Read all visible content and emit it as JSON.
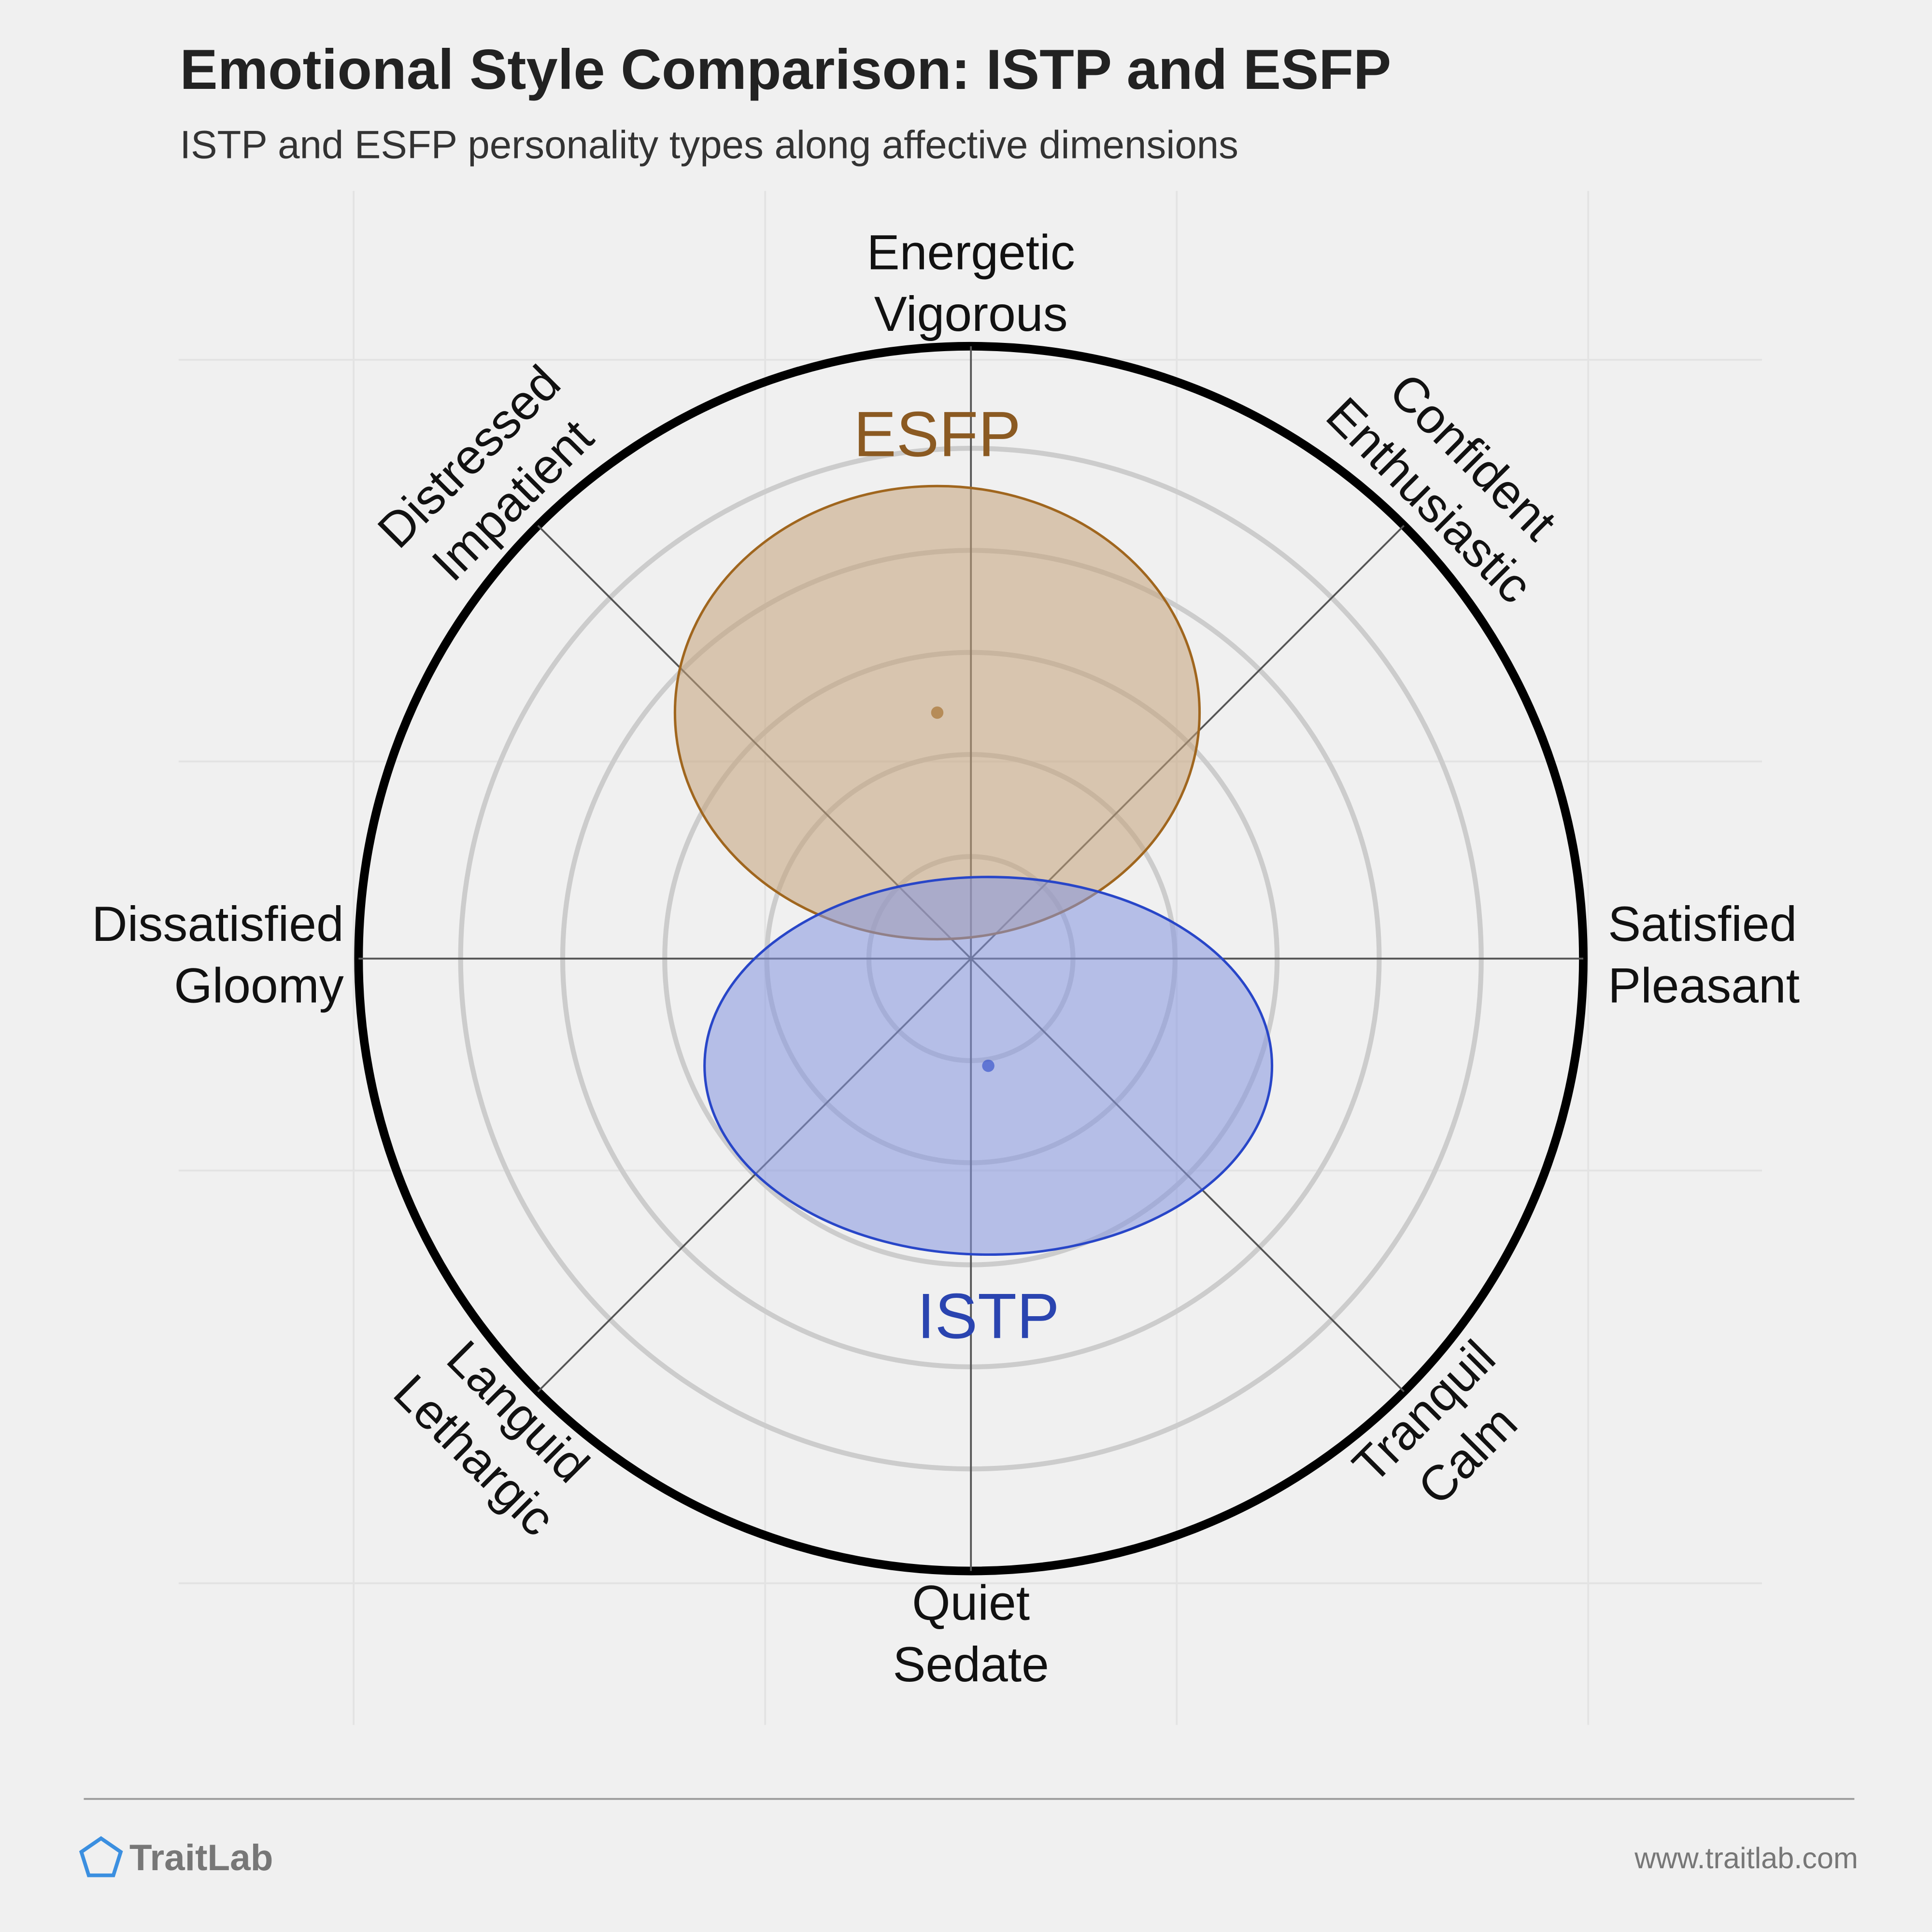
{
  "chart_data": {
    "type": "affect-circumplex",
    "title": "Emotional Style Comparison: ISTP and ESFP",
    "subtitle": "ISTP and ESFP personality types along affective dimensions",
    "rlim": [
      0,
      6
    ],
    "rticks": [
      1,
      2,
      3,
      4,
      5
    ],
    "axes": [
      {
        "lines": [
          "Satisfied",
          "Pleasant"
        ]
      },
      {
        "lines": [
          "Confident",
          "Enthusiastic"
        ]
      },
      {
        "lines": [
          "Energetic",
          "Vigorous"
        ]
      },
      {
        "lines": [
          "Distressed",
          "Impatient"
        ]
      },
      {
        "lines": [
          "Dissatisfied",
          "Gloomy"
        ]
      },
      {
        "lines": [
          "Languid",
          "Lethargic"
        ]
      },
      {
        "lines": [
          "Quiet",
          "Sedate"
        ]
      },
      {
        "lines": [
          "Tranquil",
          "Calm"
        ]
      }
    ],
    "series": [
      {
        "name": "ESFP",
        "color": "#a0661e",
        "fill": "#c4a27a",
        "text_color": "#8b5a22",
        "x": -0.33,
        "y": 2.41,
        "rx": 2.57,
        "ry": 2.22
      },
      {
        "name": "ISTP",
        "color": "#2846c8",
        "fill": "#8596e0",
        "text_color": "#2a44b0",
        "x": 0.17,
        "y": -1.05,
        "rx": 2.78,
        "ry": 1.85
      }
    ],
    "footer": {
      "brand": "TraitLab",
      "url": "www.traitlab.com"
    }
  }
}
